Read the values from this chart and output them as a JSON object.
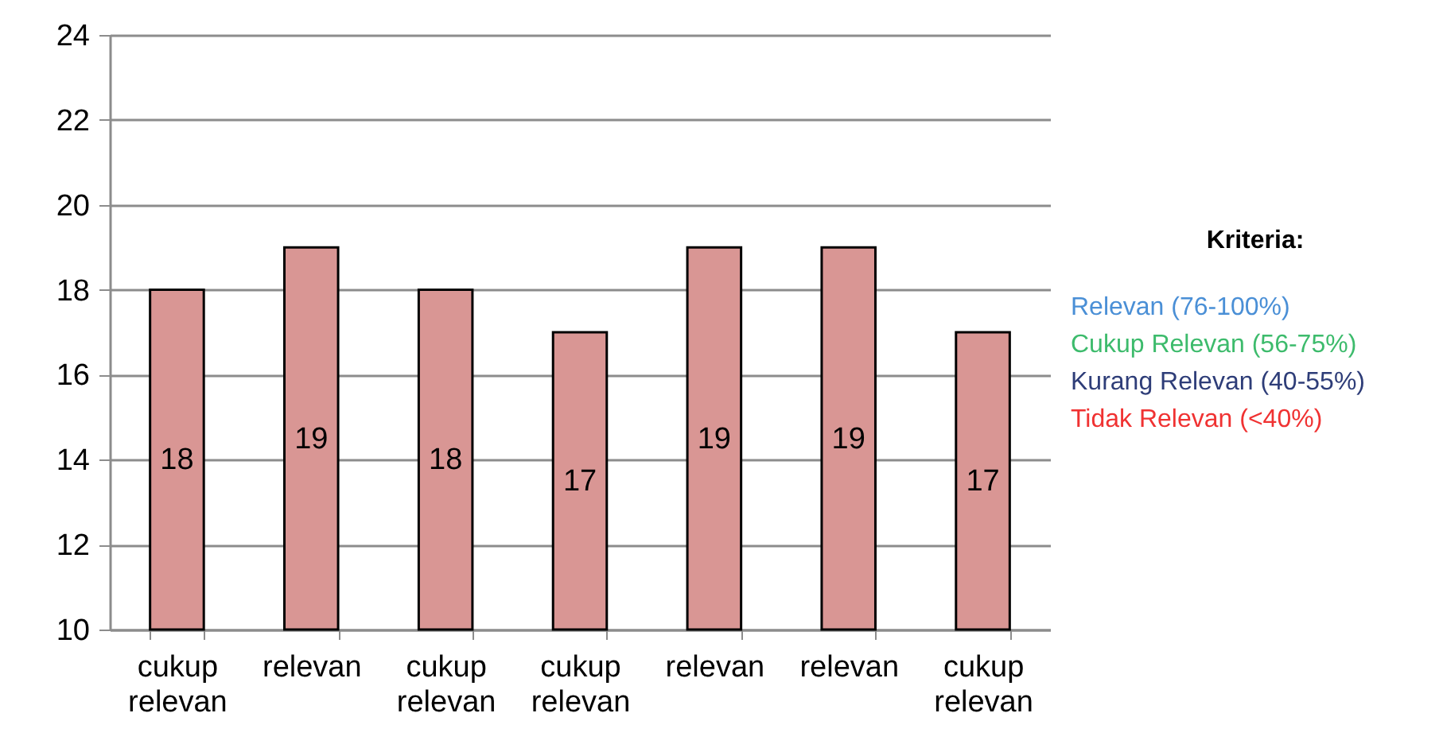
{
  "chart_data": {
    "type": "bar",
    "categories": [
      "cukup relevan",
      "relevan",
      "cukup relevan",
      "cukup relevan",
      "relevan",
      "relevan",
      "cukup relevan"
    ],
    "values": [
      18,
      19,
      18,
      17,
      19,
      19,
      17
    ],
    "color": "#d99694",
    "ylim": [
      10,
      24
    ],
    "yticks": [
      10,
      12,
      14,
      16,
      18,
      20,
      22,
      24
    ],
    "grid": "y",
    "data_labels": true,
    "annotations": [
      "Kriteria:",
      "Relevan (76-100%)",
      "Cukup Relevan (56-75%)",
      "Kurang Relevan (40-55%)",
      "Tidak Relevan (<40%)"
    ]
  }
}
